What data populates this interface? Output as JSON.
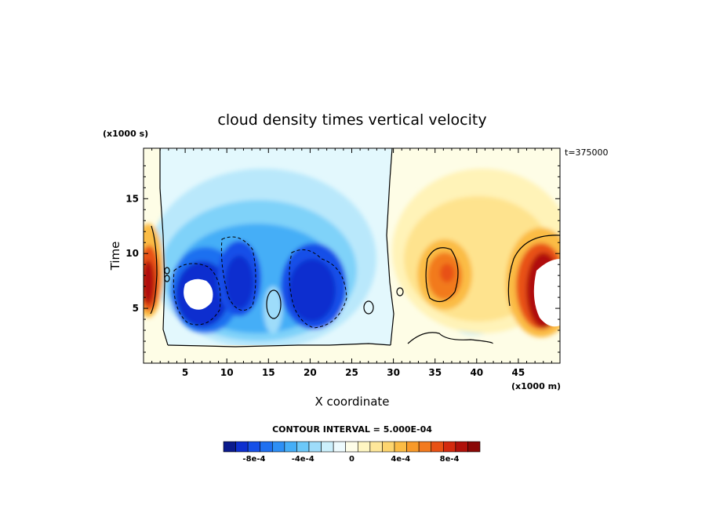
{
  "chart_data": {
    "type": "heatmap",
    "title": "cloud density times vertical velocity",
    "xlabel": "X coordinate",
    "ylabel": "Time",
    "x_unit": "(x1000 m)",
    "y_unit": "(x1000 s)",
    "time_stamp": "t=375000",
    "xlim": [
      0,
      50
    ],
    "ylim": [
      0,
      19.6
    ],
    "x_ticks": [
      "5",
      "10",
      "15",
      "20",
      "25",
      "30",
      "35",
      "40",
      "45"
    ],
    "y_ticks": [
      "5",
      "10",
      "15"
    ],
    "x_tick_values": [
      5,
      10,
      15,
      20,
      25,
      30,
      35,
      40,
      45
    ],
    "y_tick_values": [
      5,
      10,
      15
    ],
    "contour_interval_label": "CONTOUR INTERVAL = 5.000E-04",
    "colorbar": {
      "levels": [
        "-8e-4",
        "-4e-4",
        "0",
        "4e-4",
        "8e-4"
      ],
      "level_values": [
        -0.0008,
        -0.0004,
        0,
        0.0004,
        0.0008
      ],
      "colors": [
        "#0a1a8c",
        "#0d2fcf",
        "#1650e8",
        "#1f70f0",
        "#2d8ff5",
        "#45aef7",
        "#6cc8f8",
        "#9edcfa",
        "#ccf0fc",
        "#eefbfe",
        "#fefde8",
        "#fff6c2",
        "#fee79a",
        "#fdd56e",
        "#fbbc45",
        "#f89a2a",
        "#f27a1e",
        "#e85114",
        "#d32a0e",
        "#b0100a",
        "#8a0806"
      ]
    },
    "features": [
      {
        "name": "left-edge-updraft",
        "sign": "positive",
        "x_center": 1,
        "y_center": 7.5,
        "peak": 0.0009
      },
      {
        "name": "downdraft-core-1",
        "sign": "negative",
        "x_center": 7.5,
        "y_center": 6.5,
        "peak": -0.0009
      },
      {
        "name": "downdraft-core-2",
        "sign": "negative",
        "x_center": 11.5,
        "y_center": 8,
        "peak": -0.0008
      },
      {
        "name": "downdraft-core-3",
        "sign": "negative",
        "x_center": 20,
        "y_center": 7,
        "peak": -0.0009
      },
      {
        "name": "updraft-core-1",
        "sign": "positive",
        "x_center": 36,
        "y_center": 8.5,
        "peak": 0.0007
      },
      {
        "name": "right-edge-updraft",
        "sign": "positive",
        "x_center": 46.5,
        "y_center": 7,
        "peak": 0.0009
      }
    ]
  }
}
